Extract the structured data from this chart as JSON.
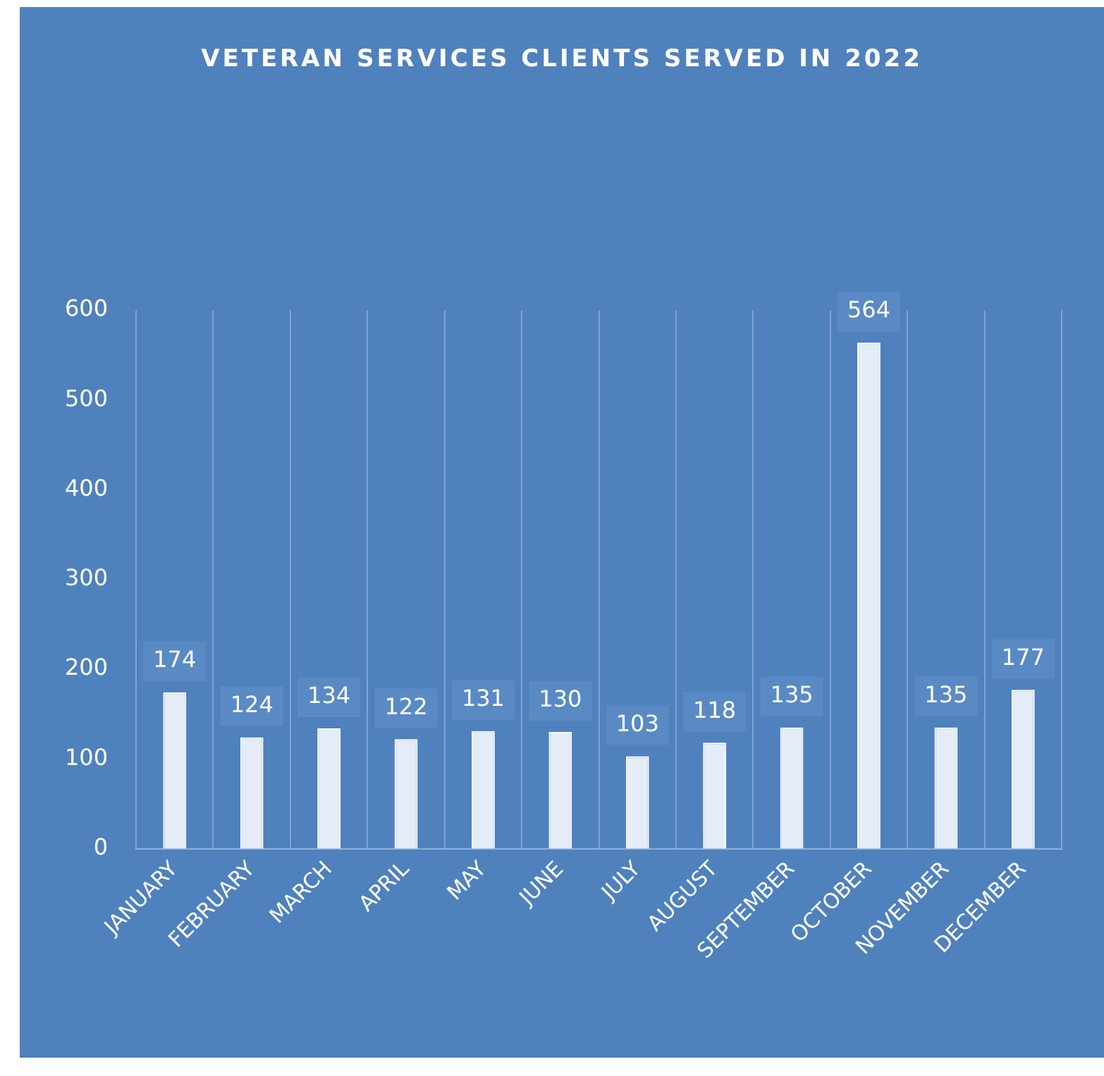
{
  "chart_data": {
    "type": "bar",
    "title": "VETERAN SERVICES CLIENTS SERVED IN 2022",
    "categories": [
      "JANUARY",
      "FEBRUARY",
      "MARCH",
      "APRIL",
      "MAY",
      "JUNE",
      "JULY",
      "AUGUST",
      "SEPTEMBER",
      "OCTOBER",
      "NOVEMBER",
      "DECEMBER"
    ],
    "values": [
      174,
      124,
      134,
      122,
      131,
      130,
      103,
      118,
      135,
      564,
      135,
      177
    ],
    "color": "#e4ecf7",
    "ylim": [
      0,
      600
    ],
    "yticks": [
      0,
      100,
      200,
      300,
      400,
      500,
      600
    ],
    "grid": "x",
    "data_labels": true
  }
}
